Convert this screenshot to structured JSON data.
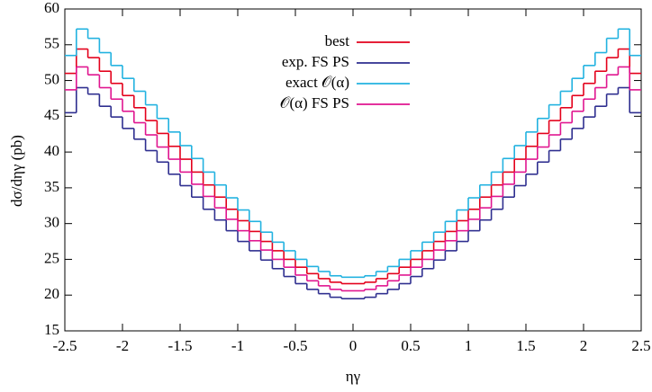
{
  "chart_data": {
    "type": "histogram",
    "xlabel": "ηγ",
    "ylabel": "dσ/dηγ (pb)",
    "bins": [
      -2.5,
      -2.4,
      -2.3,
      -2.2,
      -2.1,
      -2,
      -1.9,
      -1.8,
      -1.7,
      -1.6,
      -1.5,
      -1.4,
      -1.3,
      -1.2,
      -1.1,
      -1,
      -0.9,
      -0.8,
      -0.7,
      -0.6,
      -0.5,
      -0.4,
      -0.3,
      -0.2,
      -0.1,
      0,
      0.1,
      0.2,
      0.3,
      0.4,
      0.5,
      0.6,
      0.7,
      0.8,
      0.9,
      1,
      1.1,
      1.2,
      1.3,
      1.4,
      1.5,
      1.6,
      1.7,
      1.8,
      1.9,
      2,
      2.1,
      2.2,
      2.3,
      2.4,
      2.5
    ],
    "series": [
      {
        "name": "best",
        "color": "#e3001b",
        "values": [
          51.0,
          54.4,
          53.2,
          51.3,
          49.6,
          47.9,
          46.2,
          44.4,
          42.6,
          40.8,
          39.0,
          37.2,
          35.4,
          33.7,
          32.0,
          30.4,
          28.9,
          27.5,
          26.2,
          25.0,
          23.9,
          23.0,
          22.3,
          21.8,
          21.6,
          21.6,
          21.8,
          22.3,
          23.0,
          23.9,
          25.0,
          26.2,
          27.5,
          28.9,
          30.4,
          32.0,
          33.7,
          35.4,
          37.2,
          39.0,
          40.8,
          42.6,
          44.4,
          46.2,
          47.9,
          49.6,
          51.3,
          53.2,
          54.4,
          51.0
        ]
      },
      {
        "name": "exp. FS PS",
        "color": "#2e2e8f",
        "values": [
          45.5,
          49.0,
          48.1,
          46.4,
          44.9,
          43.3,
          41.8,
          40.2,
          38.6,
          36.9,
          35.3,
          33.7,
          32.0,
          30.5,
          29.0,
          27.5,
          26.2,
          24.9,
          23.7,
          22.6,
          21.6,
          20.8,
          20.2,
          19.7,
          19.5,
          19.5,
          19.7,
          20.2,
          20.8,
          21.6,
          22.6,
          23.7,
          24.9,
          26.2,
          27.5,
          29.0,
          30.5,
          32.0,
          33.7,
          35.3,
          36.9,
          38.6,
          40.2,
          41.8,
          43.3,
          44.9,
          46.4,
          48.1,
          49.0,
          45.5
        ]
      },
      {
        "name": "exact 𝒪(α)",
        "color": "#22b2e0",
        "values": [
          53.5,
          57.2,
          55.9,
          53.9,
          52.1,
          50.3,
          48.5,
          46.6,
          44.7,
          42.8,
          40.9,
          39.1,
          37.2,
          35.4,
          33.6,
          31.9,
          30.3,
          28.8,
          27.4,
          26.2,
          25.0,
          24.0,
          23.3,
          22.7,
          22.5,
          22.5,
          22.7,
          23.3,
          24.0,
          25.0,
          26.2,
          27.4,
          28.8,
          30.3,
          31.9,
          33.6,
          35.4,
          37.2,
          39.1,
          40.9,
          42.8,
          44.7,
          46.6,
          48.5,
          50.3,
          52.1,
          53.9,
          55.9,
          57.2,
          53.5
        ]
      },
      {
        "name": "𝒪(α) FS PS",
        "color": "#e0158f",
        "values": [
          48.7,
          51.9,
          50.8,
          49.0,
          47.4,
          45.7,
          44.1,
          42.4,
          40.7,
          39.0,
          37.2,
          35.5,
          33.8,
          32.2,
          30.6,
          29.0,
          27.6,
          26.3,
          25.0,
          23.9,
          22.8,
          22.0,
          21.3,
          20.8,
          20.6,
          20.6,
          20.8,
          21.3,
          22.0,
          22.8,
          23.9,
          25.0,
          26.3,
          27.6,
          29.0,
          30.6,
          32.2,
          33.8,
          35.5,
          37.2,
          39.0,
          40.7,
          42.4,
          44.1,
          45.7,
          47.4,
          49.0,
          50.8,
          51.9,
          48.7
        ]
      }
    ],
    "xlim": [
      -2.5,
      2.5
    ],
    "xticks": [
      -2.5,
      -2,
      -1.5,
      -1,
      -0.5,
      0,
      0.5,
      1,
      1.5,
      2,
      2.5
    ],
    "ylim": [
      15,
      60
    ],
    "yticks": [
      15,
      20,
      25,
      30,
      35,
      40,
      45,
      50,
      55,
      60
    ],
    "legend": "top-center"
  }
}
